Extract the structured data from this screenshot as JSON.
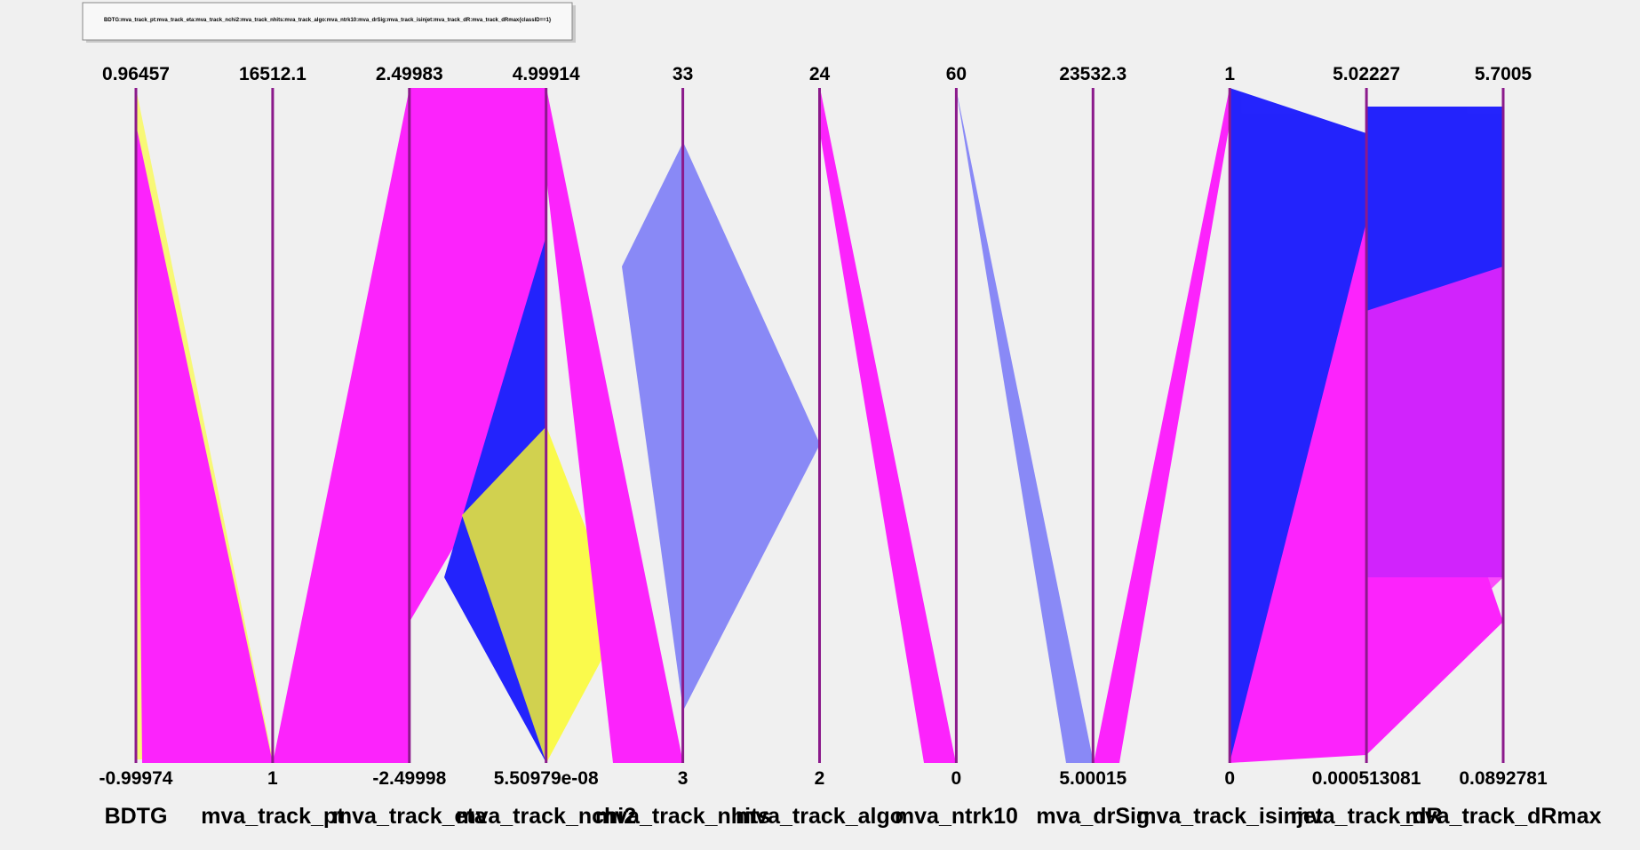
{
  "chart_data": {
    "type": "parallel",
    "title": "BDTG:mva_track_pt:mva_track_eta:mva_track_nchi2:mva_track_nhits:mva_track_algo:mva_ntrk10:mva_drSig:mva_track_isinjet:mva_track_dR:mva_track_dRmax{classID==1}",
    "axis_color": "#8b1a8b",
    "axes": [
      {
        "name": "BDTG",
        "min": -0.99974,
        "max": 0.96457
      },
      {
        "name": "mva_track_pt",
        "min": 1,
        "max": 16512.1
      },
      {
        "name": "mva_track_eta",
        "min": -2.49998,
        "max": 2.49983
      },
      {
        "name": "mva_track_nchi2",
        "min": {
          "value": 5.50979e-08,
          "label": "5.50979e-08"
        },
        "max": 4.99914
      },
      {
        "name": "mva_track_nhits",
        "min": 3,
        "max": 33
      },
      {
        "name": "mva_track_algo",
        "min": 2,
        "max": 24
      },
      {
        "name": "mva_ntrk10",
        "min": 0,
        "max": 60
      },
      {
        "name": "mva_drSig",
        "min": 5.00015,
        "max": 23532.3
      },
      {
        "name": "mva_track_isinjet",
        "min": 0,
        "max": 1
      },
      {
        "name": "mva_track_dR",
        "min": 0.000513081,
        "max": 5.02227
      },
      {
        "name": "mva_track_dRmax",
        "min": 0.0892781,
        "max": 5.7005
      }
    ]
  }
}
